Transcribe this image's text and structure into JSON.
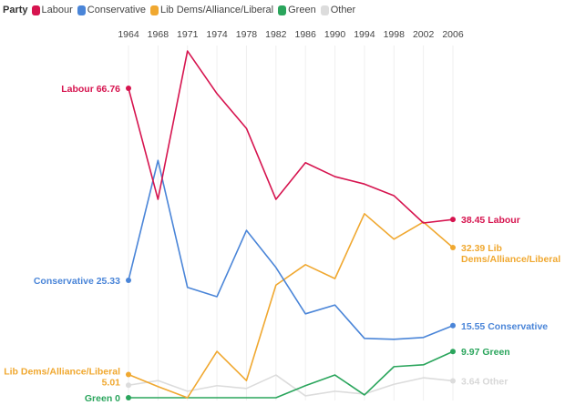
{
  "legend": {
    "title": "Party"
  },
  "chart_data": {
    "type": "line",
    "x": [
      "1964",
      "1968",
      "1971",
      "1974",
      "1978",
      "1982",
      "1986",
      "1990",
      "1994",
      "1998",
      "2002",
      "2006"
    ],
    "ylim": [
      0,
      75
    ],
    "grid": "vertical",
    "legend_placement": "top-left",
    "series": [
      {
        "name": "Labour",
        "color": "#d6144f",
        "values": [
          66.76,
          42.8,
          74.8,
          65.6,
          58.1,
          42.8,
          50.7,
          47.7,
          46.1,
          43.6,
          37.7,
          38.45
        ],
        "start_label": "Labour 66.76",
        "end_label": "38.45 Labour"
      },
      {
        "name": "Conservative",
        "color": "#4a85d8",
        "values": [
          25.33,
          51.2,
          23.8,
          21.8,
          36.1,
          28.1,
          18.1,
          20.0,
          12.8,
          12.6,
          13.0,
          15.55
        ],
        "start_label": "Conservative 25.33",
        "end_label": "15.55 Conservative"
      },
      {
        "name": "Lib Dems/Alliance/Liberal",
        "color": "#f0a830",
        "values": [
          5.01,
          2.4,
          0,
          10.0,
          3.7,
          24.3,
          28.7,
          25.7,
          39.7,
          34.2,
          37.9,
          32.39
        ],
        "start_label": "Lib Dems/Alliance/Liberal 5.01",
        "start_label_lines": [
          "Lib Dems/Alliance/Liberal",
          "5.01"
        ],
        "end_label": "32.39 Lib Dems/Alliance/Liberal",
        "end_label_lines": [
          "32.39 Lib",
          "Dems/Alliance/Liberal"
        ]
      },
      {
        "name": "Green",
        "color": "#2aa55c",
        "values": [
          0,
          0,
          0,
          0,
          0,
          0,
          2.6,
          4.9,
          0.6,
          6.7,
          7.1,
          9.97
        ],
        "start_label": "Green 0",
        "end_label": "9.97 Green"
      },
      {
        "name": "Other",
        "color": "#dcdcdc",
        "values": [
          2.7,
          3.7,
          1.4,
          2.6,
          2.0,
          4.9,
          0.4,
          1.4,
          0.8,
          2.9,
          4.3,
          3.64
        ],
        "end_label": "3.64 Other"
      }
    ]
  }
}
